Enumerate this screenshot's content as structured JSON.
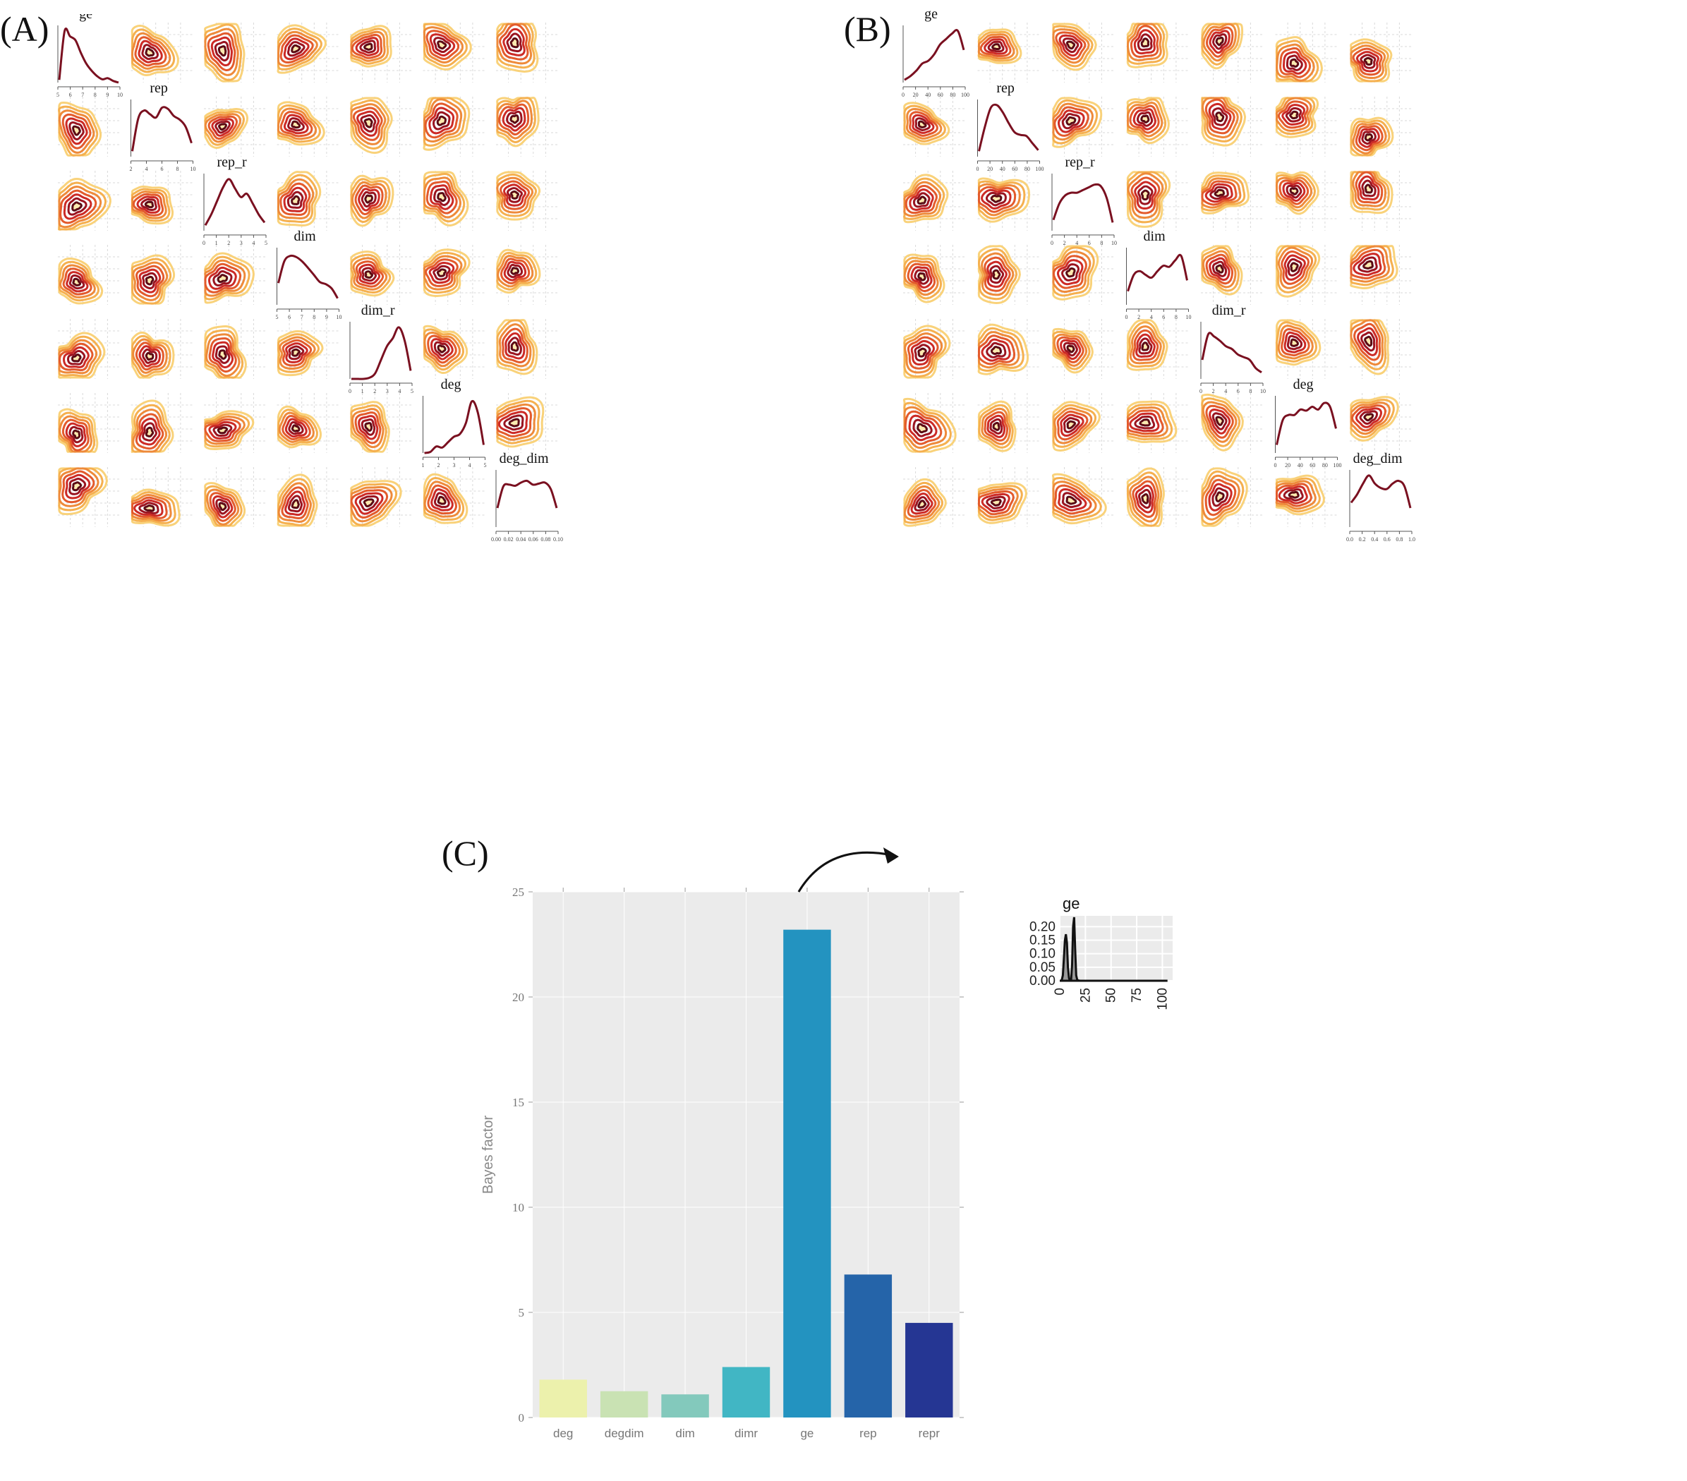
{
  "panels": {
    "A": {
      "letter": "(A)",
      "variables": [
        "ge",
        "rep",
        "rep_r",
        "dim",
        "dim_r",
        "deg",
        "deg_dim"
      ],
      "diag_x_ticks": [
        [
          "5",
          "6",
          "7",
          "8",
          "9",
          "10"
        ],
        [
          "2",
          "4",
          "6",
          "8",
          "10"
        ],
        [
          "0",
          "1",
          "2",
          "3",
          "4",
          "5"
        ],
        [
          "5",
          "6",
          "7",
          "8",
          "9",
          "10"
        ],
        [
          "0",
          "1",
          "2",
          "3",
          "4",
          "5"
        ],
        [
          "1",
          "2",
          "3",
          "4",
          "5"
        ],
        [
          "0.00",
          "0.02",
          "0.04",
          "0.06",
          "0.08",
          "0.10"
        ]
      ],
      "diag_curves": [
        [
          0.05,
          0.95,
          0.85,
          0.78,
          0.55,
          0.35,
          0.22,
          0.12,
          0.06,
          0.08,
          0.03,
          0.0
        ],
        [
          0.1,
          0.7,
          0.85,
          0.78,
          0.72,
          0.9,
          0.88,
          0.75,
          0.68,
          0.55,
          0.25
        ],
        [
          0.1,
          0.3,
          0.55,
          0.8,
          0.95,
          0.78,
          0.62,
          0.68,
          0.5,
          0.3,
          0.15
        ],
        [
          0.4,
          0.8,
          0.9,
          0.88,
          0.8,
          0.68,
          0.55,
          0.42,
          0.38,
          0.3,
          0.12
        ],
        [
          0.0,
          0.0,
          0.0,
          0.02,
          0.1,
          0.35,
          0.6,
          0.75,
          0.95,
          0.7,
          0.15
        ],
        [
          0.0,
          0.02,
          0.12,
          0.1,
          0.2,
          0.3,
          0.35,
          0.55,
          0.95,
          0.75,
          0.15
        ],
        [
          0.35,
          0.75,
          0.78,
          0.76,
          0.82,
          0.85,
          0.78,
          0.8,
          0.82,
          0.7,
          0.35
        ]
      ]
    },
    "B": {
      "letter": "(B)",
      "variables": [
        "ge",
        "rep",
        "rep_r",
        "dim",
        "dim_r",
        "deg",
        "deg_dim"
      ],
      "diag_x_ticks": [
        [
          "0",
          "20",
          "40",
          "60",
          "80",
          "100"
        ],
        [
          "0",
          "20",
          "40",
          "60",
          "80",
          "100"
        ],
        [
          "0",
          "2",
          "4",
          "6",
          "8",
          "10"
        ],
        [
          "0",
          "2",
          "4",
          "6",
          "8",
          "10"
        ],
        [
          "0",
          "2",
          "4",
          "6",
          "8",
          "10"
        ],
        [
          "0",
          "20",
          "40",
          "60",
          "80",
          "100"
        ],
        [
          "0.0",
          "0.2",
          "0.4",
          "0.6",
          "0.8",
          "1.0"
        ]
      ],
      "diag_curves": [
        [
          0.05,
          0.12,
          0.22,
          0.35,
          0.4,
          0.52,
          0.7,
          0.8,
          0.9,
          0.95,
          0.6
        ],
        [
          0.1,
          0.55,
          0.9,
          0.95,
          0.82,
          0.62,
          0.45,
          0.4,
          0.38,
          0.25,
          0.12
        ],
        [
          0.2,
          0.5,
          0.65,
          0.7,
          0.7,
          0.75,
          0.8,
          0.85,
          0.82,
          0.6,
          0.15
        ],
        [
          0.25,
          0.55,
          0.62,
          0.55,
          0.5,
          0.62,
          0.72,
          0.7,
          0.82,
          0.9,
          0.45
        ],
        [
          0.35,
          0.82,
          0.78,
          0.7,
          0.6,
          0.55,
          0.45,
          0.4,
          0.35,
          0.2,
          0.12
        ],
        [
          0.15,
          0.6,
          0.7,
          0.7,
          0.8,
          0.78,
          0.85,
          0.8,
          0.92,
          0.85,
          0.45
        ],
        [
          0.45,
          0.6,
          0.8,
          0.95,
          0.8,
          0.72,
          0.7,
          0.8,
          0.85,
          0.75,
          0.35
        ]
      ]
    },
    "C": {
      "letter": "(C)",
      "annotation": "ge"
    }
  },
  "colors": {
    "density_line": "#7a1020",
    "contour_scale": [
      "#fbeab0",
      "#f9d27a",
      "#f5b04f",
      "#ee8a3a",
      "#e35a2c",
      "#cc2a26",
      "#9a1420",
      "#5a0a14"
    ],
    "panel_bg": "#ebebeb",
    "grid": "#ffffff",
    "arrow": "#111111"
  },
  "chart_data": [
    {
      "type": "bar",
      "categories": [
        "deg",
        "degdim",
        "dim",
        "dimr",
        "ge",
        "rep",
        "repr"
      ],
      "values": [
        1.8,
        1.25,
        1.1,
        2.4,
        23.2,
        6.8,
        4.5
      ],
      "colors": [
        "#ecf1ac",
        "#c9e2b3",
        "#83c9bc",
        "#41b6c4",
        "#2393c0",
        "#2564a9",
        "#253693"
      ],
      "ylabel": "Bayes factor",
      "ylim": [
        0,
        25
      ],
      "yticks": [
        0,
        5,
        10,
        15,
        20,
        25
      ],
      "grid": true
    },
    {
      "type": "area",
      "title": "ge",
      "xlim": [
        0,
        110
      ],
      "ylim": [
        0,
        0.24
      ],
      "xticks": [
        0,
        25,
        50,
        75,
        100
      ],
      "yticks": [
        0.0,
        0.05,
        0.1,
        0.15,
        0.2
      ],
      "ytick_labels": [
        "0.00",
        "0.05",
        "0.10",
        "0.15",
        "0.20"
      ],
      "x": [
        0,
        1,
        2,
        3,
        4,
        5,
        6,
        7,
        8,
        9,
        10,
        11,
        12,
        13,
        14,
        15,
        16,
        17,
        18,
        20,
        30,
        50,
        80,
        105
      ],
      "y": [
        0.0,
        0.0,
        0.003,
        0.02,
        0.08,
        0.15,
        0.172,
        0.14,
        0.05,
        0.01,
        0.0,
        0.0,
        0.06,
        0.2,
        0.235,
        0.12,
        0.02,
        0.004,
        0.001,
        0.0,
        0.0,
        0.0,
        0.0,
        0.0
      ]
    }
  ]
}
